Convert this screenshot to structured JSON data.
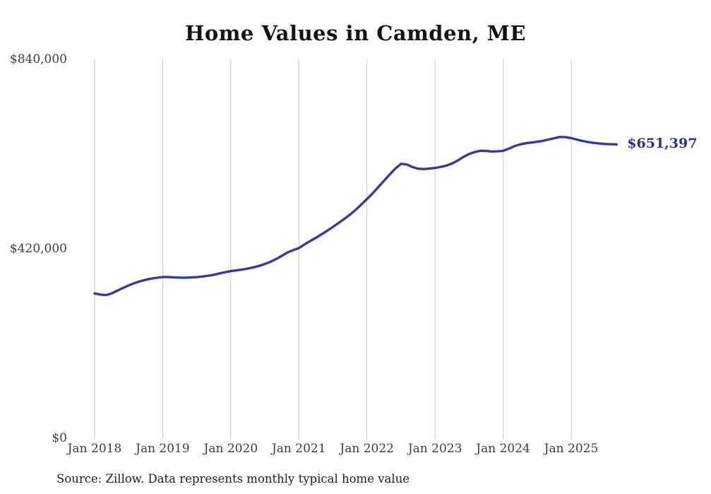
{
  "title": "Home Values in Camden, ME",
  "source_note": "Source: Zillow. Data represents monthly typical home value",
  "colors": {
    "line": "#3b3898",
    "grid": "#c9c9c9",
    "title_text": "#141414",
    "axis_text": "#3d3d3d",
    "end_label_text": "#2d2f8e",
    "background": "#ffffff"
  },
  "chart_data": {
    "type": "line",
    "title": "Home Values in Camden, ME",
    "xlabel": "",
    "ylabel": "",
    "ylim": [
      0,
      840000
    ],
    "grid": "vertical-only",
    "legend_position": "none",
    "y_ticks": [
      {
        "label": "$0",
        "value": 0
      },
      {
        "label": "$420,000",
        "value": 420000
      },
      {
        "label": "$840,000",
        "value": 840000
      }
    ],
    "x_ticks": [
      "Jan 2018",
      "Jan 2019",
      "Jan 2020",
      "Jan 2021",
      "Jan 2022",
      "Jan 2023",
      "Jan 2024",
      "Jan 2025"
    ],
    "series": [
      {
        "name": "Monthly typical home value",
        "start_month": "2018-01",
        "interval": "monthly",
        "final_value": 651397,
        "final_label": "$651,397",
        "values": [
          321000,
          318400,
          317200,
          321000,
          327000,
          333200,
          338800,
          343700,
          347900,
          351200,
          353800,
          355800,
          357300,
          357100,
          356600,
          356100,
          355900,
          356300,
          357200,
          358400,
          360100,
          362400,
          365300,
          367900,
          370500,
          372100,
          374000,
          376200,
          378800,
          382100,
          386200,
          391200,
          397300,
          404300,
          411800,
          417100,
          421500,
          429700,
          437200,
          444300,
          451900,
          459900,
          468400,
          477200,
          486300,
          495500,
          506200,
          518100,
          530300,
          543100,
          556600,
          570600,
          584700,
          597700,
          608400,
          606900,
          601300,
          597600,
          596800,
          597900,
          599200,
          601400,
          604300,
          609000,
          615800,
          623600,
          630100,
          634600,
          637400,
          637000,
          635600,
          636100,
          637200,
          641900,
          647600,
          651400,
          653900,
          655600,
          657300,
          659300,
          662200,
          665100,
          667900,
          667500,
          665400,
          662200,
          659000,
          656700,
          654800,
          653400,
          652300,
          651800,
          651397
        ]
      }
    ]
  }
}
